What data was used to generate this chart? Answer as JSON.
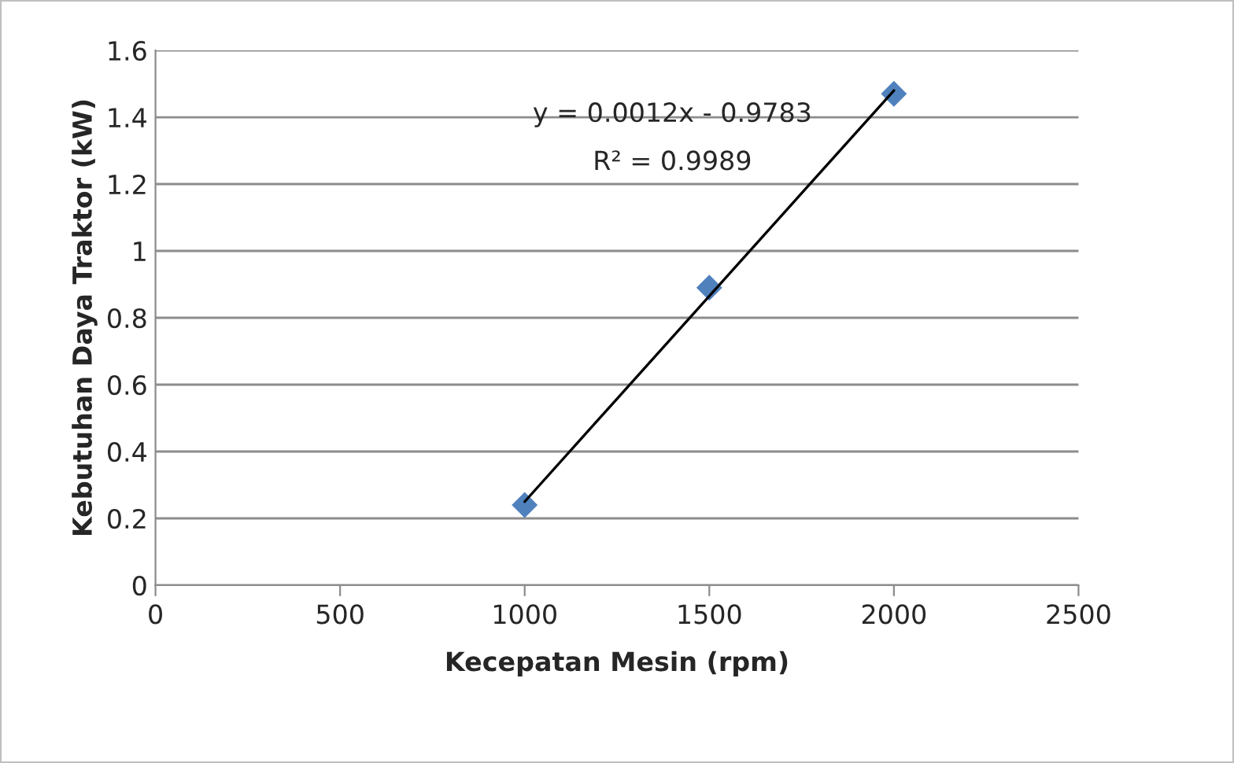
{
  "chart_data": {
    "type": "scatter",
    "xlabel": "Kecepatan Mesin (rpm)",
    "ylabel": "Kebutuhan Daya Traktor (kW)",
    "series": [
      {
        "type": "scatter",
        "color": "#4f81bd",
        "marker": "diamond",
        "x": [
          1000,
          1500,
          2000
        ],
        "values": [
          0.24,
          0.89,
          1.47
        ]
      },
      {
        "type": "line",
        "color": "#000000",
        "marker": "none",
        "line_style": "solid",
        "x": [
          1000,
          2000
        ],
        "values": [
          0.25,
          1.48
        ]
      }
    ],
    "annotations": [
      "y = 0.0012x - 0.9783",
      "R² = 0.9989"
    ],
    "xlim": [
      0,
      2500
    ],
    "xticks": [
      0,
      500,
      1000,
      1500,
      2000,
      2500
    ],
    "ylim": [
      0,
      1.6
    ],
    "yticks": [
      0,
      0.2,
      0.4,
      0.6,
      0.8,
      1,
      1.2,
      1.4,
      1.6
    ],
    "grid": "y",
    "legend": false
  }
}
